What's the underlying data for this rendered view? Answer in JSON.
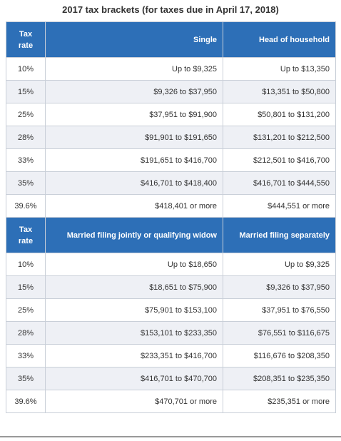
{
  "title": "2017 tax brackets (for taxes due in April 17, 2018)",
  "tables": [
    {
      "headers": [
        "Tax rate",
        "Single",
        "Head of household"
      ],
      "rows": [
        [
          "10%",
          "Up to $9,325",
          "Up to $13,350"
        ],
        [
          "15%",
          "$9,326 to $37,950",
          "$13,351 to $50,800"
        ],
        [
          "25%",
          "$37,951 to $91,900",
          "$50,801 to $131,200"
        ],
        [
          "28%",
          "$91,901 to $191,650",
          "$131,201 to $212,500"
        ],
        [
          "33%",
          "$191,651 to $416,700",
          "$212,501 to $416,700"
        ],
        [
          "35%",
          "$416,701 to $418,400",
          "$416,701 to $444,550"
        ],
        [
          "39.6%",
          "$418,401 or more",
          "$444,551 or more"
        ]
      ]
    },
    {
      "headers": [
        "Tax rate",
        "Married filing jointly or qualifying widow",
        "Married filing separately"
      ],
      "rows": [
        [
          "10%",
          "Up to $18,650",
          "Up to $9,325"
        ],
        [
          "15%",
          "$18,651 to $75,900",
          "$9,326 to $37,950"
        ],
        [
          "25%",
          "$75,901 to $153,100",
          "$37,951 to $76,550"
        ],
        [
          "28%",
          "$153,101 to $233,350",
          "$76,551 to $116,675"
        ],
        [
          "33%",
          "$233,351 to $416,700",
          "$116,676 to $208,350"
        ],
        [
          "35%",
          "$416,701 to $470,700",
          "$208,351 to $235,350"
        ],
        [
          "39.6%",
          "$470,701 or more",
          "$235,351 or more"
        ]
      ]
    }
  ]
}
